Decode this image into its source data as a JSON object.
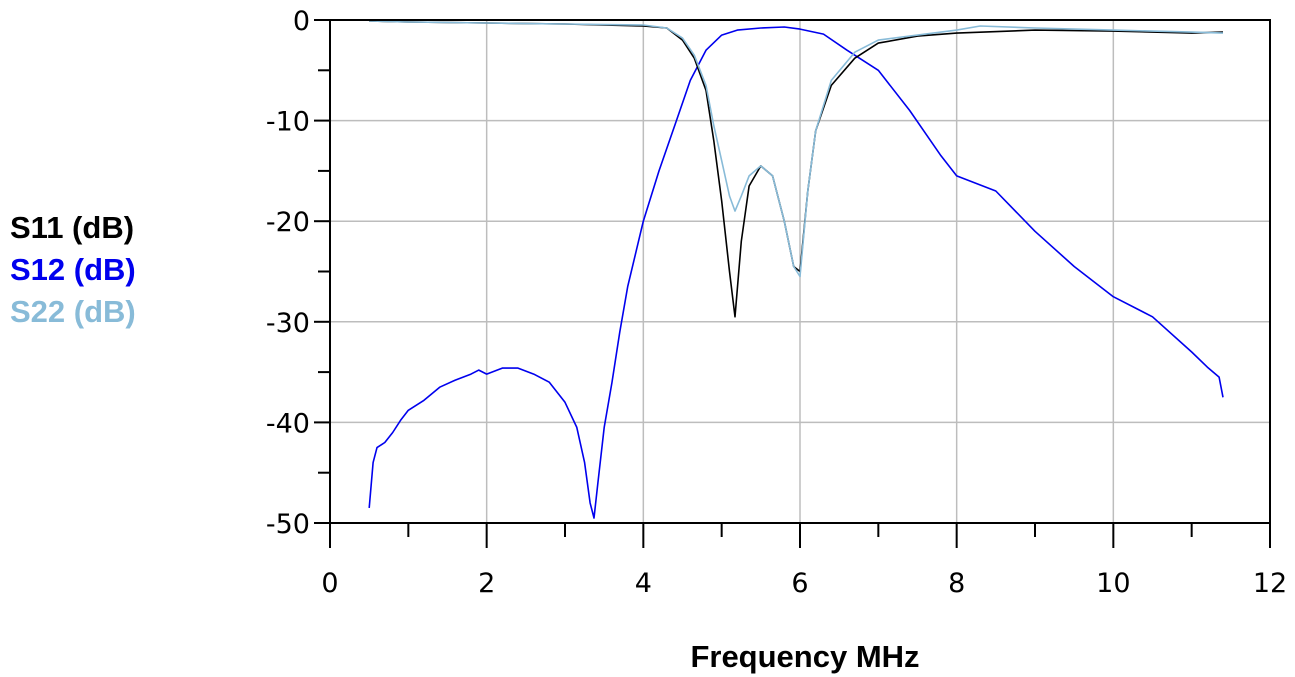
{
  "chart_data": {
    "type": "line",
    "title": "",
    "xlabel": "Frequency MHz",
    "ylabel": "",
    "xlim": [
      0,
      12
    ],
    "ylim": [
      -50,
      0
    ],
    "grid": true,
    "legend_position": "left",
    "x_ticks": [
      0,
      2,
      4,
      6,
      8,
      10,
      12
    ],
    "x_tick_labels": [
      "0",
      "2",
      "4",
      "6",
      "8",
      "10",
      "12"
    ],
    "y_ticks": [
      0,
      -10,
      -20,
      -30,
      -40,
      -50
    ],
    "y_tick_labels": [
      "0",
      "-10",
      "-20",
      "-30",
      "-40",
      "-50"
    ],
    "series": [
      {
        "name": "S11 (dB)",
        "color": "#000000",
        "points": [
          [
            0.5,
            -0.1
          ],
          [
            1.0,
            -0.2
          ],
          [
            2.0,
            -0.3
          ],
          [
            3.0,
            -0.4
          ],
          [
            4.0,
            -0.6
          ],
          [
            4.3,
            -0.8
          ],
          [
            4.5,
            -2.0
          ],
          [
            4.65,
            -3.8
          ],
          [
            4.8,
            -7.0
          ],
          [
            4.9,
            -12.0
          ],
          [
            5.0,
            -18.0
          ],
          [
            5.1,
            -25.0
          ],
          [
            5.17,
            -29.5
          ],
          [
            5.25,
            -22.0
          ],
          [
            5.35,
            -16.5
          ],
          [
            5.5,
            -14.5
          ],
          [
            5.65,
            -15.5
          ],
          [
            5.8,
            -20.0
          ],
          [
            5.92,
            -24.5
          ],
          [
            6.0,
            -25.0
          ],
          [
            6.1,
            -17.0
          ],
          [
            6.2,
            -11.0
          ],
          [
            6.4,
            -6.5
          ],
          [
            6.7,
            -3.8
          ],
          [
            7.0,
            -2.3
          ],
          [
            7.5,
            -1.6
          ],
          [
            8.0,
            -1.3
          ],
          [
            9.0,
            -1.0
          ],
          [
            10.0,
            -1.1
          ],
          [
            11.0,
            -1.3
          ],
          [
            11.4,
            -1.2
          ]
        ]
      },
      {
        "name": "S12 (dB)",
        "color": "#0000ee",
        "points": [
          [
            0.5,
            -48.5
          ],
          [
            0.55,
            -44.0
          ],
          [
            0.6,
            -42.5
          ],
          [
            0.7,
            -42.0
          ],
          [
            0.8,
            -41.0
          ],
          [
            0.9,
            -39.8
          ],
          [
            1.0,
            -38.8
          ],
          [
            1.2,
            -37.8
          ],
          [
            1.4,
            -36.5
          ],
          [
            1.6,
            -35.8
          ],
          [
            1.8,
            -35.2
          ],
          [
            1.9,
            -34.8
          ],
          [
            2.0,
            -35.2
          ],
          [
            2.2,
            -34.6
          ],
          [
            2.4,
            -34.6
          ],
          [
            2.6,
            -35.2
          ],
          [
            2.8,
            -36.0
          ],
          [
            3.0,
            -38.0
          ],
          [
            3.15,
            -40.5
          ],
          [
            3.25,
            -44.0
          ],
          [
            3.32,
            -48.0
          ],
          [
            3.37,
            -49.5
          ],
          [
            3.42,
            -46.0
          ],
          [
            3.5,
            -40.5
          ],
          [
            3.6,
            -36.0
          ],
          [
            3.7,
            -31.0
          ],
          [
            3.8,
            -26.5
          ],
          [
            4.0,
            -20.0
          ],
          [
            4.2,
            -15.0
          ],
          [
            4.4,
            -10.5
          ],
          [
            4.6,
            -6.0
          ],
          [
            4.8,
            -3.0
          ],
          [
            5.0,
            -1.5
          ],
          [
            5.2,
            -1.0
          ],
          [
            5.5,
            -0.8
          ],
          [
            5.8,
            -0.7
          ],
          [
            6.0,
            -0.9
          ],
          [
            6.3,
            -1.4
          ],
          [
            6.6,
            -3.0
          ],
          [
            7.0,
            -5.0
          ],
          [
            7.4,
            -9.0
          ],
          [
            7.8,
            -13.5
          ],
          [
            8.0,
            -15.5
          ],
          [
            8.5,
            -17.0
          ],
          [
            9.0,
            -21.0
          ],
          [
            9.5,
            -24.5
          ],
          [
            10.0,
            -27.5
          ],
          [
            10.5,
            -29.5
          ],
          [
            11.0,
            -33.0
          ],
          [
            11.2,
            -34.5
          ],
          [
            11.35,
            -35.5
          ],
          [
            11.4,
            -37.5
          ]
        ]
      },
      {
        "name": "S22 (dB)",
        "color": "#88bbd8",
        "points": [
          [
            0.5,
            -0.1
          ],
          [
            1.0,
            -0.2
          ],
          [
            2.0,
            -0.3
          ],
          [
            3.0,
            -0.4
          ],
          [
            4.0,
            -0.5
          ],
          [
            4.3,
            -0.8
          ],
          [
            4.5,
            -1.8
          ],
          [
            4.65,
            -3.5
          ],
          [
            4.8,
            -6.5
          ],
          [
            4.9,
            -10.5
          ],
          [
            5.0,
            -14.0
          ],
          [
            5.1,
            -17.5
          ],
          [
            5.17,
            -19.0
          ],
          [
            5.25,
            -17.5
          ],
          [
            5.35,
            -15.5
          ],
          [
            5.5,
            -14.5
          ],
          [
            5.65,
            -15.5
          ],
          [
            5.8,
            -20.0
          ],
          [
            5.92,
            -24.5
          ],
          [
            6.0,
            -25.5
          ],
          [
            6.1,
            -17.0
          ],
          [
            6.2,
            -11.0
          ],
          [
            6.4,
            -6.0
          ],
          [
            6.7,
            -3.2
          ],
          [
            7.0,
            -2.0
          ],
          [
            7.5,
            -1.5
          ],
          [
            8.0,
            -1.0
          ],
          [
            8.3,
            -0.6
          ],
          [
            9.0,
            -0.8
          ],
          [
            10.0,
            -1.0
          ],
          [
            11.0,
            -1.2
          ],
          [
            11.4,
            -1.3
          ]
        ]
      }
    ]
  }
}
